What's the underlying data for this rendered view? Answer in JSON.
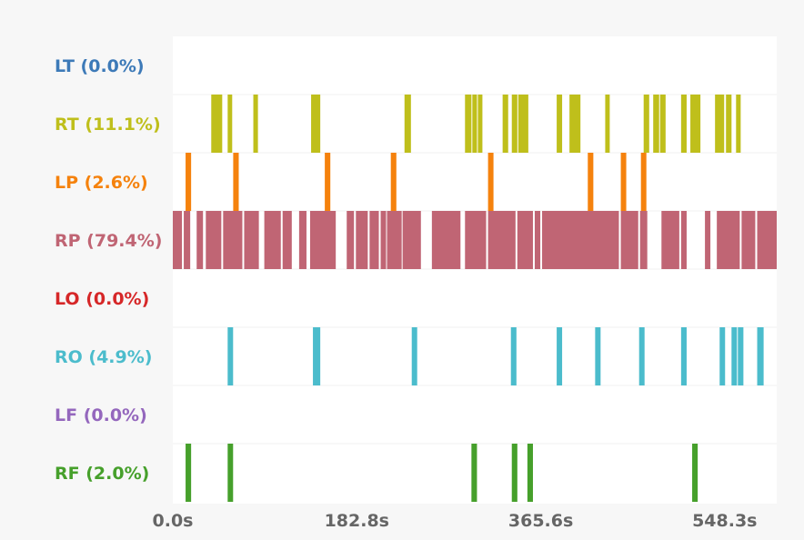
{
  "chart_data": {
    "type": "event_raster",
    "title": "",
    "xlabel": "",
    "ylabel": "",
    "xlim": [
      0,
      600
    ],
    "x_ticks": [
      "0.0s",
      "182.8s",
      "365.6s",
      "548.3s"
    ],
    "x_tick_values": [
      0,
      182.8,
      365.6,
      548.3
    ],
    "grid": false,
    "rows": [
      {
        "id": "LT",
        "label": "LT (0.0%)",
        "color": "#3d7ab8",
        "events": []
      },
      {
        "id": "RT",
        "label": "RT (11.1%)",
        "color": "#bfbf1b",
        "events": [
          [
            38.2,
            49.1
          ],
          [
            54.5,
            59.0
          ],
          [
            80.0,
            84.6
          ],
          [
            137.4,
            146.5
          ],
          [
            230.2,
            236.6
          ],
          [
            290.3,
            296.7
          ],
          [
            297.6,
            302.2
          ],
          [
            303.1,
            307.6
          ],
          [
            327.7,
            333.2
          ],
          [
            336.8,
            342.3
          ],
          [
            343.2,
            353.2
          ],
          [
            381.4,
            386.8
          ],
          [
            394.1,
            405.0
          ],
          [
            429.6,
            434.1
          ],
          [
            467.8,
            473.3
          ],
          [
            477.3,
            483.2
          ],
          [
            484.1,
            489.6
          ],
          [
            505.0,
            510.5
          ],
          [
            514.2,
            524.2
          ],
          [
            538.7,
            547.8
          ],
          [
            549.6,
            555.1
          ],
          [
            559.6,
            564.2
          ]
        ]
      },
      {
        "id": "LP",
        "label": "LP (2.6%)",
        "color": "#f5820d",
        "events": [
          [
            12.7,
            18.2
          ],
          [
            60.0,
            65.5
          ],
          [
            151.0,
            156.5
          ],
          [
            216.6,
            222.1
          ],
          [
            313.2,
            318.6
          ],
          [
            412.3,
            417.8
          ],
          [
            445.1,
            450.5
          ],
          [
            465.1,
            470.5
          ]
        ]
      },
      {
        "id": "RP",
        "label": "RP (79.4%)",
        "color": "#c06574",
        "events": [
          [
            0,
            9.1
          ],
          [
            10.9,
            17.3
          ],
          [
            23.7,
            30.0
          ],
          [
            32.8,
            48.2
          ],
          [
            50.0,
            69.1
          ],
          [
            70.9,
            85.5
          ],
          [
            90.9,
            107.3
          ],
          [
            109.1,
            118.2
          ],
          [
            125.5,
            132.8
          ],
          [
            136.4,
            161.9
          ],
          [
            172.8,
            180.0
          ],
          [
            181.9,
            193.7
          ],
          [
            195.5,
            204.7
          ],
          [
            206.5,
            211.9
          ],
          [
            212.8,
            227.4
          ],
          [
            228.3,
            246.5
          ],
          [
            257.4,
            285.8
          ],
          [
            290.3,
            311.3
          ],
          [
            313.2,
            340.5
          ],
          [
            342.3,
            357.8
          ],
          [
            359.6,
            365.1
          ],
          [
            366.9,
            443.2
          ],
          [
            445.1,
            462.4
          ],
          [
            464.2,
            471.4
          ],
          [
            485.5,
            503.2
          ],
          [
            505.0,
            510.5
          ],
          [
            528.7,
            534.1
          ],
          [
            540.5,
            563.3
          ],
          [
            565.1,
            578.7
          ],
          [
            580.6,
            600.0
          ]
        ]
      },
      {
        "id": "LO",
        "label": "LO (0.0%)",
        "color": "#d62728",
        "events": []
      },
      {
        "id": "RO",
        "label": "RO (4.9%)",
        "color": "#4bbccc",
        "events": [
          [
            54.5,
            59.9
          ],
          [
            139.2,
            146.5
          ],
          [
            237.4,
            242.8
          ],
          [
            335.9,
            341.4
          ],
          [
            381.4,
            386.8
          ],
          [
            419.6,
            425.0
          ],
          [
            463.3,
            468.7
          ],
          [
            505.0,
            510.5
          ],
          [
            543.3,
            548.7
          ],
          [
            555.1,
            560.5
          ],
          [
            561.4,
            566.9
          ],
          [
            580.6,
            587.0
          ]
        ]
      },
      {
        "id": "LF",
        "label": "LF (0.0%)",
        "color": "#9467bd",
        "events": []
      },
      {
        "id": "RF",
        "label": "RF (2.0%)",
        "color": "#46a02b",
        "events": [
          [
            12.7,
            18.2
          ],
          [
            54.5,
            59.9
          ],
          [
            296.7,
            302.2
          ],
          [
            336.8,
            342.3
          ],
          [
            352.3,
            357.8
          ],
          [
            516.0,
            521.5
          ]
        ]
      }
    ]
  }
}
